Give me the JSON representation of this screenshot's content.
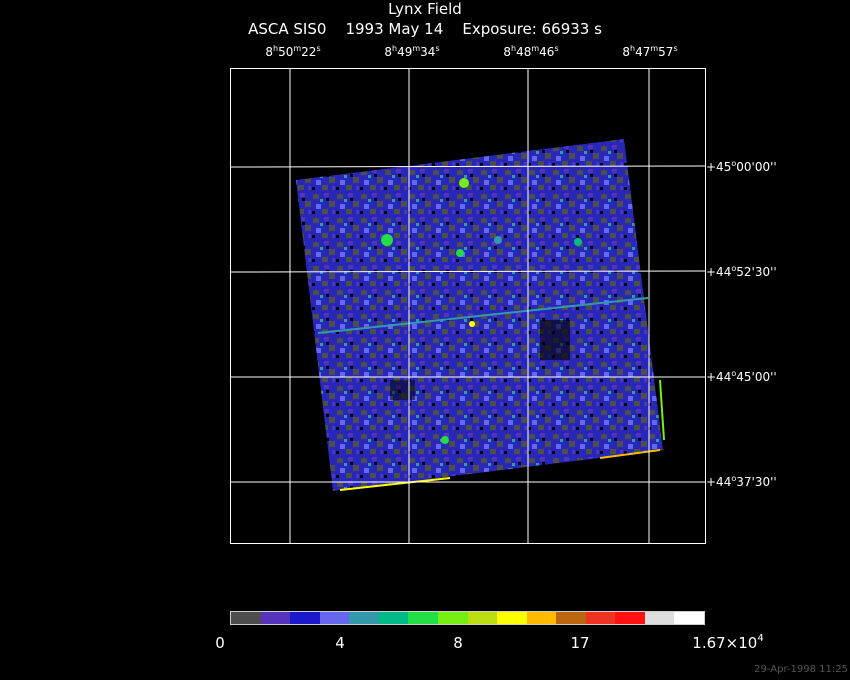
{
  "title": {
    "line1": "Lynx Field",
    "line2": "ASCA SIS0    1993 May 14    Exposure: 66933 s"
  },
  "ra_ticks": [
    {
      "h": "8",
      "m": "50",
      "s": "22"
    },
    {
      "h": "8",
      "m": "49",
      "s": "34"
    },
    {
      "h": "8",
      "m": "48",
      "s": "46"
    },
    {
      "h": "8",
      "m": "47",
      "s": "57"
    }
  ],
  "dec_ticks": [
    {
      "deg": "+45",
      "min": "00",
      "sec": "00"
    },
    {
      "deg": "+44",
      "min": "52",
      "sec": "30"
    },
    {
      "deg": "+44",
      "min": "45",
      "sec": "00"
    },
    {
      "deg": "+44",
      "min": "37",
      "sec": "30"
    }
  ],
  "colorbar": {
    "colors": [
      "#4d4d4d",
      "#5533bb",
      "#1a1acc",
      "#6666ee",
      "#3399aa",
      "#00bb88",
      "#22dd44",
      "#77ee11",
      "#bbdd11",
      "#ffff00",
      "#ffbb00",
      "#bb6611",
      "#ee3322",
      "#ff1111",
      "#dddddd",
      "#ffffff"
    ],
    "labels": [
      {
        "text": "0"
      },
      {
        "text": "4"
      },
      {
        "text": "8"
      },
      {
        "text": "17"
      },
      {
        "text": "1.67×10",
        "exp": "4"
      }
    ]
  },
  "timestamp": "29-Apr-1998 11:25"
}
